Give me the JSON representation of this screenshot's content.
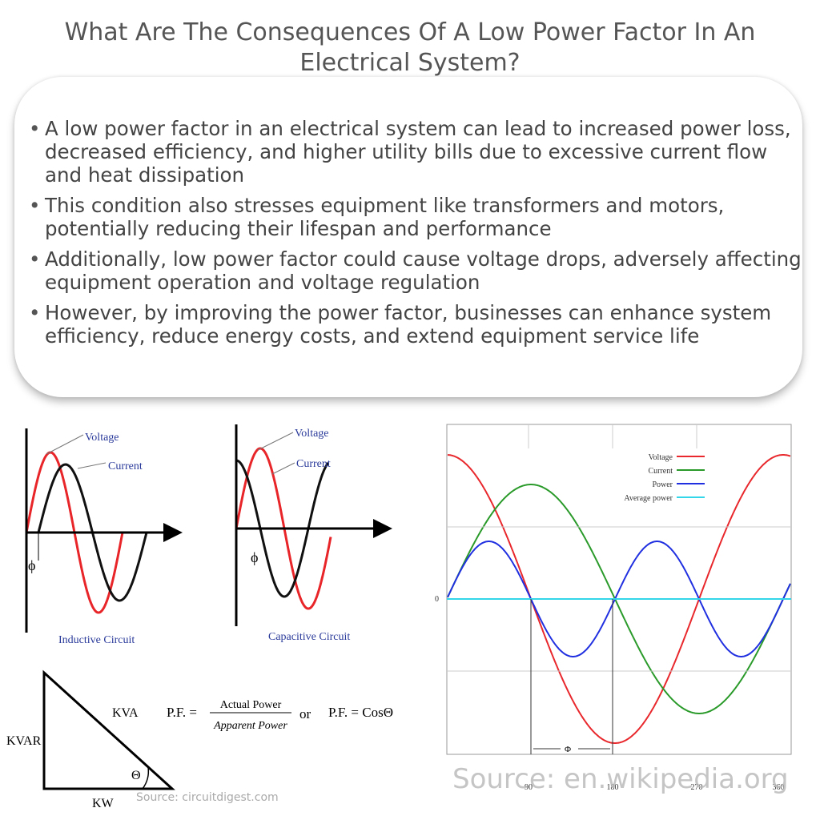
{
  "header": {
    "title": "What Are The Consequences Of A Low Power Factor In An Electrical System?"
  },
  "bullets": [
    "A low power factor in an electrical system can lead to increased power loss, decreased efficiency, and higher utility bills due to excessive current flow and heat dissipation",
    "This condition also stresses equipment like transformers and motors, potentially reducing their lifespan and performance",
    "Additionally, low power factor could cause voltage drops, adversely affecting equipment operation and voltage regulation",
    "However, by improving the power factor, businesses can enhance system efficiency, reduce energy costs, and extend equipment service life"
  ],
  "figures": {
    "inductive": {
      "voltage": "Voltage",
      "current": "Current",
      "phase": "ϕ",
      "caption": "Inductive Circuit"
    },
    "capacitive": {
      "voltage": "Voltage",
      "current": "Current",
      "phase": "ϕ",
      "caption": "Capacitive Circuit"
    },
    "triangle": {
      "hypotenuse": "KVA",
      "side": "KVAR",
      "base": "KW",
      "angle": "Θ",
      "formula_lhs": "P.F. =",
      "numerator": "Actual Power",
      "denominator": "Apparent Power",
      "or": "or",
      "formula2": "P.F. = CosΘ",
      "source": "Source: circuitdigest.com"
    },
    "waveform": {
      "legend": [
        "Voltage",
        "Current",
        "Power",
        "Average power"
      ],
      "zero": "0",
      "x_labels": [
        "90",
        "180",
        "270",
        "360"
      ],
      "phase": "Φ",
      "source": "Source: en.wikipedia.org"
    }
  }
}
